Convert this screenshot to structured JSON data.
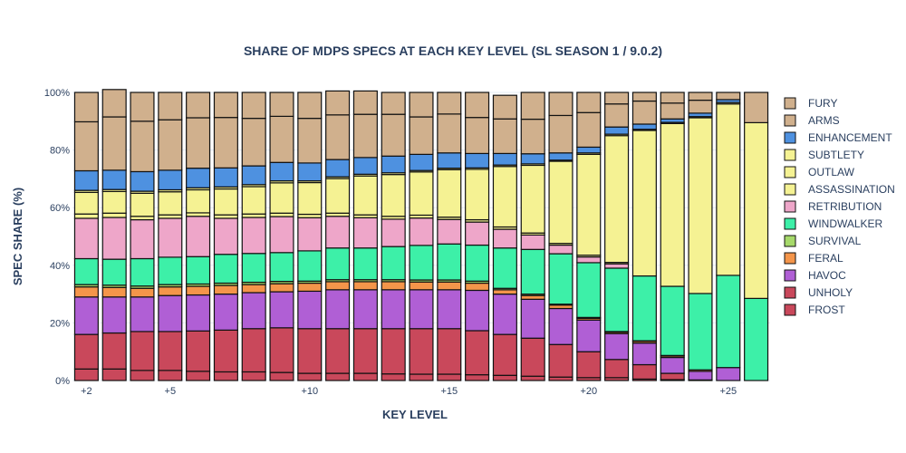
{
  "chart_data": {
    "type": "bar",
    "stacked": true,
    "title": "SHARE OF MDPS SPECS AT EACH KEY LEVEL (SL SEASON 1 / 9.0.2)",
    "xlabel": "KEY LEVEL",
    "ylabel": "SPEC SHARE (%)",
    "ylim": [
      0,
      100
    ],
    "y_ticks": [
      "0%",
      "20%",
      "40%",
      "60%",
      "80%",
      "100%"
    ],
    "x_ticks": [
      "+2",
      "+5",
      "+10",
      "+15",
      "+20",
      "+25"
    ],
    "categories": [
      2,
      3,
      4,
      5,
      6,
      7,
      8,
      9,
      10,
      11,
      12,
      13,
      14,
      15,
      16,
      17,
      18,
      19,
      20,
      21,
      22,
      23,
      24,
      25,
      26
    ],
    "legend_position": "right",
    "series": [
      {
        "name": "FROST",
        "color": "#c9485b",
        "values": [
          4.0,
          4.0,
          3.5,
          3.5,
          3.2,
          3.0,
          3.0,
          2.8,
          2.5,
          2.5,
          2.5,
          2.3,
          2.2,
          2.2,
          2.0,
          1.8,
          1.5,
          1.2,
          1.0,
          1.0,
          0.5,
          0.3,
          0.2,
          0,
          0
        ]
      },
      {
        "name": "UNHOLY",
        "color": "#c9485b",
        "values": [
          12.0,
          12.5,
          13.5,
          13.5,
          14.0,
          14.5,
          15.0,
          15.5,
          15.5,
          15.5,
          15.5,
          15.7,
          15.8,
          15.8,
          15.3,
          14.2,
          13.2,
          11.3,
          9.0,
          6.3,
          5.0,
          2.2,
          0,
          0,
          0
        ]
      },
      {
        "name": "HAVOC",
        "color": "#b05fd5",
        "values": [
          13.0,
          12.5,
          12.0,
          12.5,
          12.5,
          12.5,
          12.5,
          12.5,
          13.0,
          13.5,
          13.5,
          13.5,
          13.5,
          13.5,
          14.0,
          14.0,
          13.5,
          12.5,
          11.0,
          9.0,
          7.5,
          5.5,
          3.0,
          4.5,
          0
        ]
      },
      {
        "name": "FERAL",
        "color": "#f4954a",
        "values": [
          3.5,
          3.3,
          3.0,
          3.0,
          3.0,
          3.0,
          2.8,
          2.8,
          2.8,
          2.8,
          2.8,
          2.8,
          2.7,
          2.7,
          2.5,
          1.5,
          1.3,
          1.2,
          0.6,
          0.5,
          0.6,
          0.5,
          0.5,
          0,
          0
        ]
      },
      {
        "name": "SURVIVAL",
        "color": "#a6d96a",
        "values": [
          0.8,
          0.8,
          0.8,
          0.8,
          0.8,
          0.8,
          0.8,
          0.8,
          0.7,
          0.7,
          0.7,
          0.7,
          0.7,
          0.7,
          0.7,
          0.5,
          0.5,
          0.3,
          0.3,
          0.2,
          0.2,
          0.2,
          0,
          0,
          0
        ]
      },
      {
        "name": "WINDWALKER",
        "color": "#3df0a8",
        "values": [
          9.0,
          9.0,
          9.5,
          9.5,
          9.5,
          10.0,
          10.0,
          10.0,
          10.5,
          11.0,
          11.0,
          11.5,
          12.0,
          12.5,
          12.5,
          14.0,
          15.5,
          17.5,
          19.0,
          22.0,
          22.5,
          24.0,
          26.5,
          32.0,
          28.5
        ]
      },
      {
        "name": "RETRIBUTION",
        "color": "#eea6c9",
        "values": [
          14.0,
          14.5,
          13.5,
          13.5,
          14.0,
          12.5,
          12.5,
          12.5,
          11.5,
          11.0,
          10.5,
          9.5,
          9.5,
          8.5,
          8.0,
          6.5,
          5.0,
          3.0,
          2.0,
          1.5,
          0,
          0,
          0,
          0,
          0
        ]
      },
      {
        "name": "ASSASSINATION",
        "color": "#f5f293",
        "values": [
          1.5,
          1.5,
          1.2,
          1.2,
          1.2,
          1.2,
          1.2,
          1.2,
          1.2,
          1.1,
          1.0,
          1.0,
          1.0,
          0.8,
          0.8,
          0.8,
          0.7,
          0.6,
          0.6,
          0.5,
          0,
          0,
          0,
          0,
          0
        ]
      },
      {
        "name": "OUTLAW",
        "color": "#f5f293",
        "values": [
          7.5,
          7.5,
          8.0,
          8.0,
          8.0,
          9.0,
          9.5,
          10.5,
          11.0,
          12.0,
          13.5,
          14.5,
          15.0,
          16.5,
          17.5,
          21.0,
          23.5,
          28.5,
          35.0,
          44.0,
          50.5,
          56.5,
          61.0,
          59.5,
          61.0
        ]
      },
      {
        "name": "SUBTLETY",
        "color": "#f5f293",
        "values": [
          0.7,
          0.7,
          0.7,
          0.7,
          0.7,
          0.7,
          0.7,
          0.7,
          0.6,
          0.6,
          0.6,
          0.6,
          0.5,
          0.5,
          0.5,
          0.5,
          0.5,
          0.4,
          0.5,
          0.5,
          0.4,
          0.4,
          0.4,
          0.5,
          0
        ]
      },
      {
        "name": "ENHANCEMENT",
        "color": "#4e91e0",
        "values": [
          6.8,
          6.7,
          6.8,
          6.8,
          6.8,
          6.6,
          6.5,
          6.4,
          6.2,
          6.0,
          5.8,
          5.8,
          5.6,
          5.3,
          5.0,
          4.0,
          3.5,
          2.5,
          2.0,
          2.5,
          1.8,
          1.2,
          1.2,
          1.0,
          0
        ]
      },
      {
        "name": "ARMS",
        "color": "#d0b08d",
        "values": [
          17.0,
          18.5,
          17.5,
          17.5,
          17.5,
          17.5,
          16.5,
          16.0,
          15.5,
          15.5,
          15.0,
          14.5,
          13.0,
          13.5,
          12.5,
          12.0,
          12.0,
          13.0,
          12.0,
          8.0,
          8.0,
          5.5,
          4.5,
          0,
          0
        ]
      },
      {
        "name": "FURY",
        "color": "#d0b08d",
        "values": [
          10.2,
          9.5,
          10.0,
          9.5,
          8.8,
          8.7,
          9.0,
          8.3,
          9.0,
          8.3,
          8.1,
          7.6,
          8.5,
          7.5,
          8.7,
          8.2,
          9.3,
          8.0,
          7.0,
          4.0,
          3.0,
          3.7,
          2.7,
          2.5,
          10.5
        ]
      }
    ]
  }
}
